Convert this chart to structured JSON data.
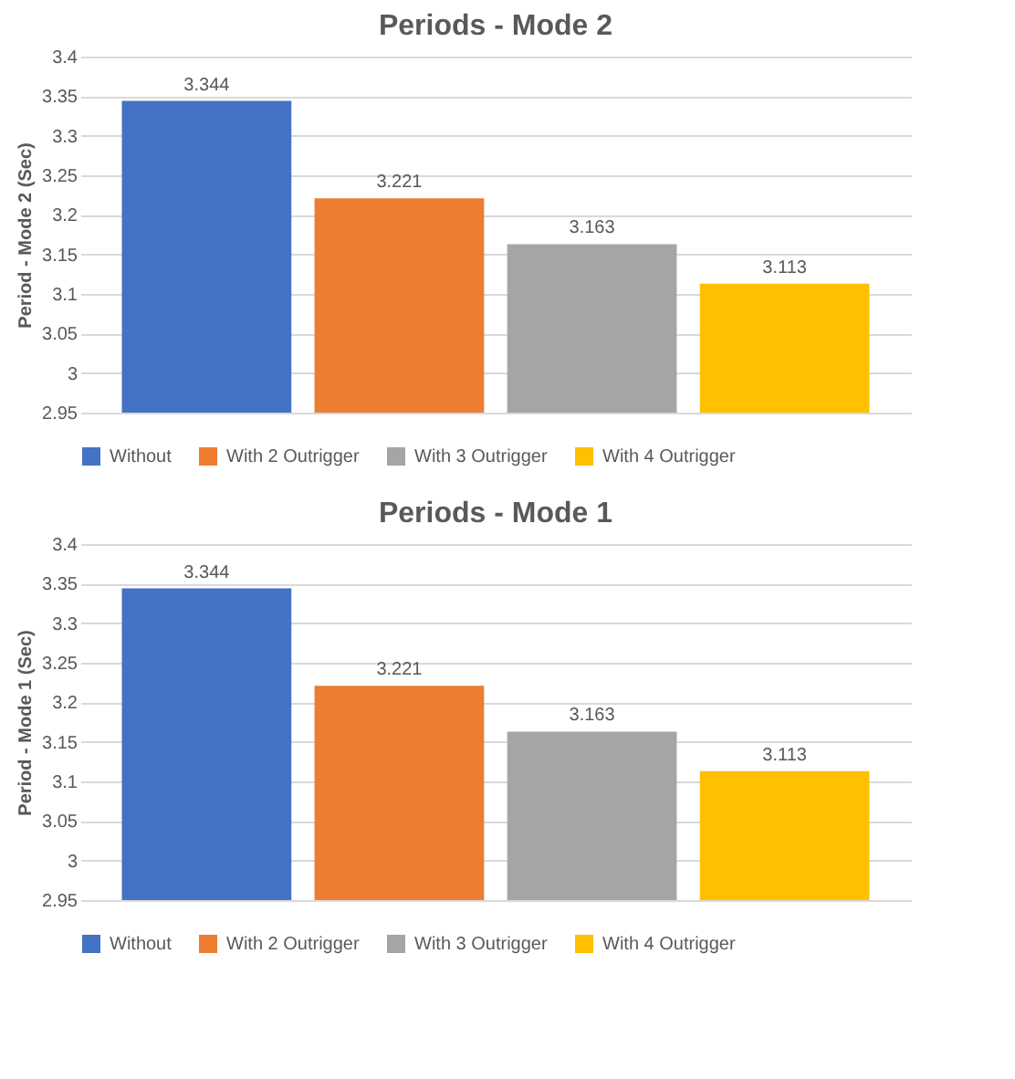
{
  "chart_data": [
    {
      "type": "bar",
      "title": "Periods - Mode 2",
      "ylabel": "Period - Mode 2 (Sec)",
      "categories": [
        null
      ],
      "series": [
        {
          "name": "Without",
          "color": "#4472c4",
          "values": [
            3.344
          ]
        },
        {
          "name": "With 2 Outrigger",
          "color": "#ed7d31",
          "values": [
            3.221
          ]
        },
        {
          "name": "With 3 Outrigger",
          "color": "#a5a5a5",
          "values": [
            3.163
          ]
        },
        {
          "name": "With 4 Outrigger",
          "color": "#ffc000",
          "values": [
            3.113
          ]
        }
      ],
      "ylim": [
        2.95,
        3.4
      ],
      "yticks": [
        2.95,
        3,
        3.05,
        3.1,
        3.15,
        3.2,
        3.25,
        3.3,
        3.35,
        3.4
      ],
      "grid": "y",
      "legend": "bottom",
      "data_labels": true,
      "tick_labels": "y"
    },
    {
      "type": "bar",
      "title": "Periods - Mode 1",
      "ylabel": "Period - Mode 1 (Sec)",
      "categories": [
        null
      ],
      "series": [
        {
          "name": "Without",
          "color": "#4472c4",
          "values": [
            3.344
          ]
        },
        {
          "name": "With 2 Outrigger",
          "color": "#ed7d31",
          "values": [
            3.221
          ]
        },
        {
          "name": "With 3 Outrigger",
          "color": "#a5a5a5",
          "values": [
            3.163
          ]
        },
        {
          "name": "With 4 Outrigger",
          "color": "#ffc000",
          "values": [
            3.113
          ]
        }
      ],
      "ylim": [
        2.95,
        3.4
      ],
      "yticks": [
        2.95,
        3,
        3.05,
        3.1,
        3.15,
        3.2,
        3.25,
        3.3,
        3.35,
        3.4
      ],
      "grid": "y",
      "legend": "bottom",
      "data_labels": true,
      "tick_labels": "y"
    }
  ]
}
